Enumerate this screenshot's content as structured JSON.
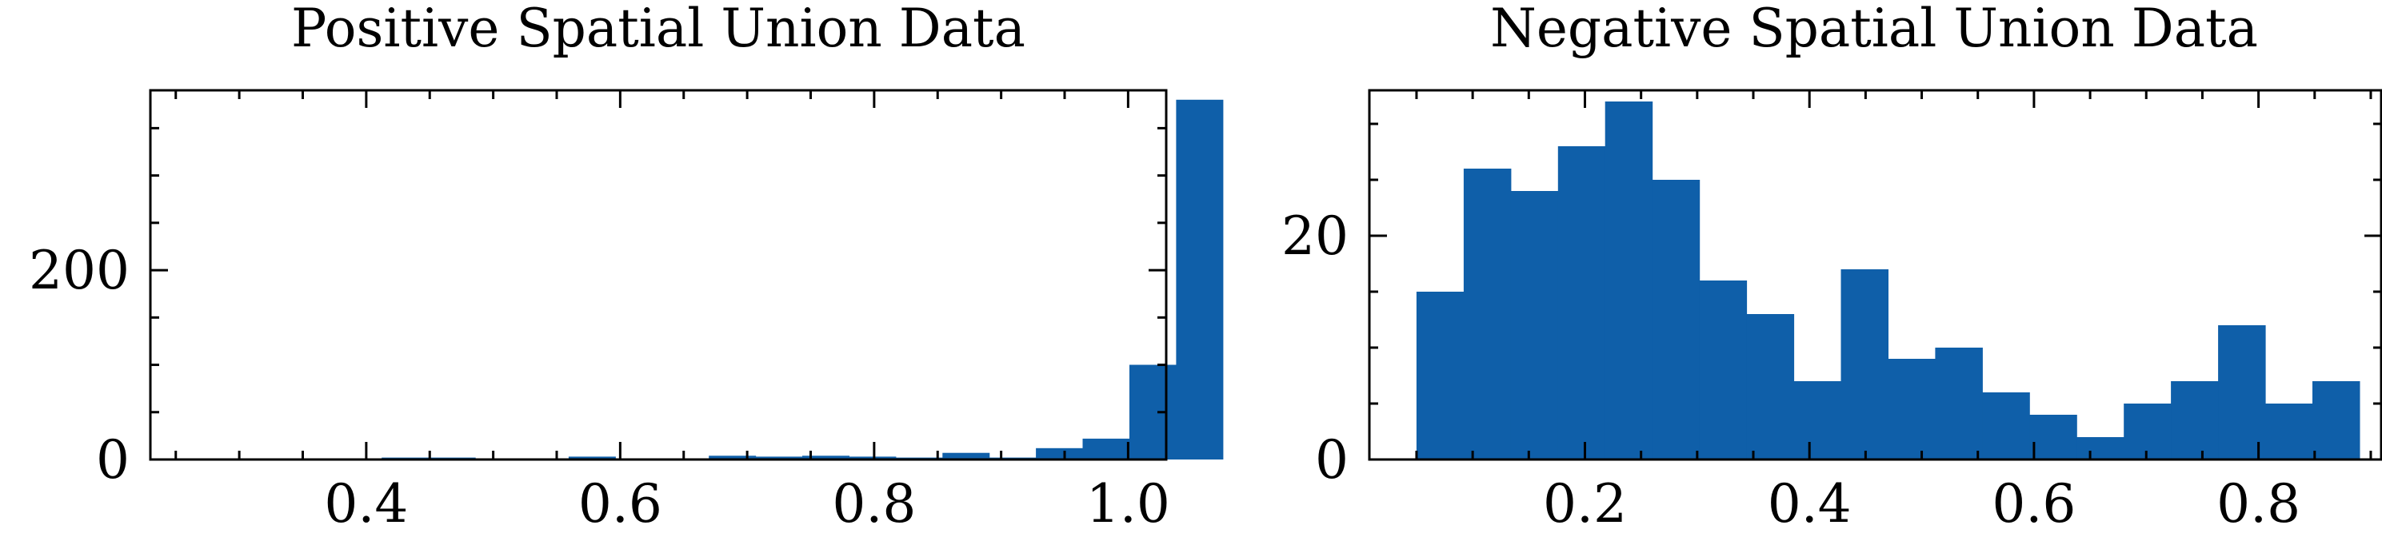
{
  "colors": {
    "bar": "#0f5fa9",
    "axis": "#000000",
    "background": "#ffffff"
  },
  "chart_data": [
    {
      "type": "bar",
      "title": "Positive Spatial Union Data",
      "xlim": [
        0.23,
        1.03
      ],
      "ylim": [
        0,
        390
      ],
      "xticks": [
        0.4,
        0.6,
        0.8,
        1.0
      ],
      "xtick_labels": [
        "0.4",
        "0.6",
        "0.8",
        "1.0"
      ],
      "xminor": [
        0.25,
        0.3,
        0.35,
        0.45,
        0.5,
        0.55,
        0.65,
        0.7,
        0.75,
        0.85,
        0.9,
        0.95
      ],
      "yticks": [
        0,
        200
      ],
      "ytick_labels": [
        "0",
        "200"
      ],
      "yminor": [
        50,
        100,
        150,
        250,
        300,
        350
      ],
      "bins": {
        "start": 0.265,
        "width": 0.0368,
        "values": [
          0,
          0,
          0,
          1,
          2,
          2,
          0,
          0,
          3,
          1,
          0,
          4,
          3,
          4,
          3,
          2,
          7,
          2,
          12,
          22,
          100,
          380
        ]
      }
    },
    {
      "type": "bar",
      "title": "Negative Spatial Union Data",
      "xlim": [
        0.008,
        0.91
      ],
      "ylim": [
        0,
        33
      ],
      "xticks": [
        0.2,
        0.4,
        0.6,
        0.8
      ],
      "xtick_labels": [
        "0.2",
        "0.4",
        "0.6",
        "0.8"
      ],
      "xminor": [
        0.05,
        0.1,
        0.15,
        0.25,
        0.3,
        0.35,
        0.45,
        0.5,
        0.55,
        0.65,
        0.7,
        0.75,
        0.85,
        0.9
      ],
      "yticks": [
        0,
        20
      ],
      "ytick_labels": [
        "0",
        "20"
      ],
      "yminor": [
        5,
        10,
        15,
        25,
        30
      ],
      "bins": {
        "start": 0.05,
        "width": 0.042,
        "values": [
          15,
          26,
          24,
          28,
          32,
          25,
          16,
          13,
          7,
          17,
          9,
          10,
          6,
          4,
          2,
          5,
          7,
          12,
          5,
          7
        ]
      }
    }
  ]
}
